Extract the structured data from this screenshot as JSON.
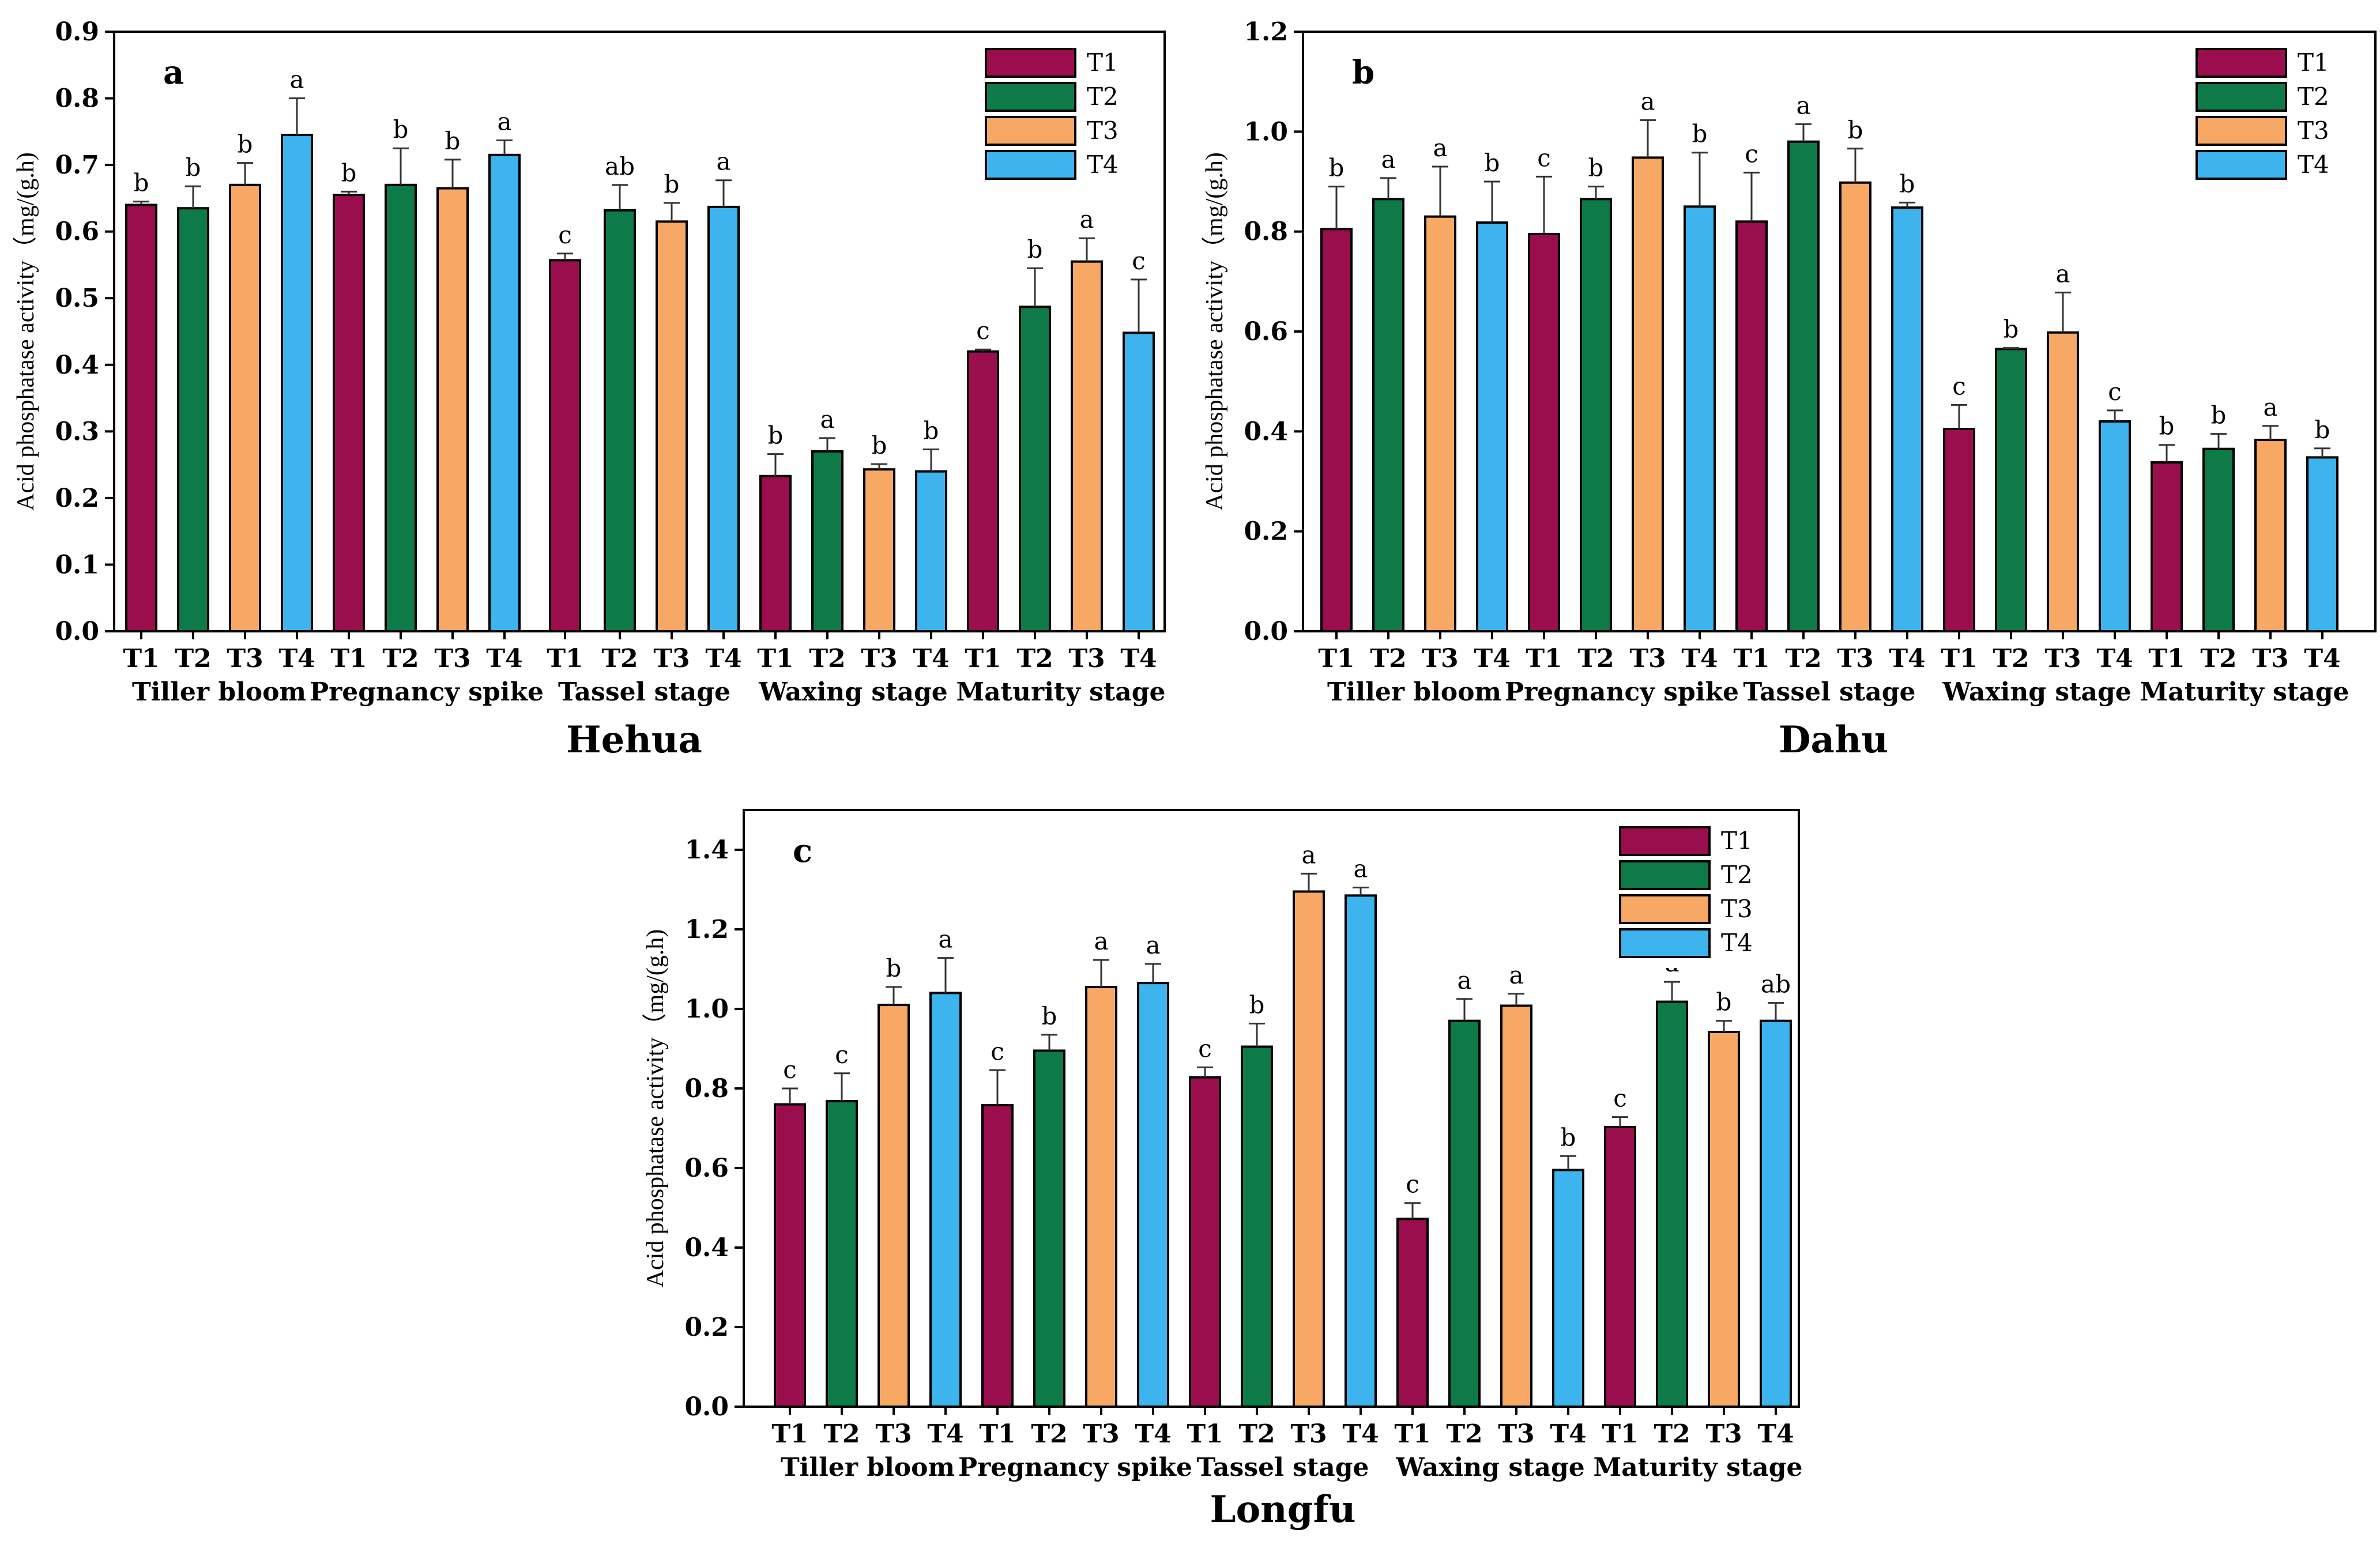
{
  "colors": {
    "T1": "#9B0E4E",
    "T2": "#0E7A48",
    "T3": "#F7A865",
    "T4": "#3DB4EE"
  },
  "chart_data": [
    {
      "type": "bar",
      "panel": "a",
      "title": "Hehua",
      "ylabel": "Acid phosphatase activity（mg/(g.h)",
      "ylim": [
        0,
        0.9
      ],
      "yticks": [
        0.0,
        0.1,
        0.2,
        0.3,
        0.4,
        0.5,
        0.6,
        0.7,
        0.8,
        0.9
      ],
      "ytick_labels": [
        "0.0",
        "0.1",
        "0.2",
        "0.3",
        "0.4",
        "0.5",
        "0.6",
        "0.7",
        "0.8",
        "0.9"
      ],
      "stages": [
        "Tiller bloom",
        "Pregnancy spike",
        "Tassel stage",
        "Waxing stage",
        "Maturity stage"
      ],
      "treatments": [
        "T1",
        "T2",
        "T3",
        "T4"
      ],
      "legend": [
        "T1",
        "T2",
        "T3",
        "T4"
      ],
      "values": [
        [
          0.64,
          0.635,
          0.67,
          0.745
        ],
        [
          0.655,
          0.67,
          0.665,
          0.715
        ],
        [
          0.557,
          0.632,
          0.615,
          0.637
        ],
        [
          0.233,
          0.27,
          0.243,
          0.24
        ],
        [
          0.42,
          0.487,
          0.555,
          0.448
        ]
      ],
      "errors": [
        [
          0.005,
          0.033,
          0.033,
          0.055
        ],
        [
          0.005,
          0.055,
          0.043,
          0.022
        ],
        [
          0.01,
          0.038,
          0.028,
          0.04
        ],
        [
          0.033,
          0.02,
          0.008,
          0.033
        ],
        [
          0.003,
          0.058,
          0.035,
          0.08
        ]
      ],
      "letters": [
        [
          "b",
          "b",
          "b",
          "a"
        ],
        [
          "b",
          "b",
          "b",
          "a"
        ],
        [
          "c",
          "ab",
          "b",
          "a"
        ],
        [
          "b",
          "a",
          "b",
          "b"
        ],
        [
          "c",
          "b",
          "a",
          "c"
        ]
      ]
    },
    {
      "type": "bar",
      "panel": "b",
      "title": "Dahu",
      "ylabel": "Acid phosphatase activity（mg/(g.h)",
      "ylim": [
        0,
        1.2
      ],
      "yticks": [
        0.0,
        0.2,
        0.4,
        0.6,
        0.8,
        1.0,
        1.2
      ],
      "ytick_labels": [
        "0.0",
        "0.2",
        "0.4",
        "0.6",
        "0.8",
        "1.0",
        "1.2"
      ],
      "stages": [
        "Tiller bloom",
        "Pregnancy spike",
        "Tassel stage",
        "Waxing stage",
        "Maturity stage"
      ],
      "treatments": [
        "T1",
        "T2",
        "T3",
        "T4"
      ],
      "legend": [
        "T1",
        "T2",
        "T3",
        "T4"
      ],
      "values": [
        [
          0.805,
          0.865,
          0.83,
          0.818
        ],
        [
          0.795,
          0.865,
          0.948,
          0.85
        ],
        [
          0.82,
          0.98,
          0.898,
          0.848
        ],
        [
          0.405,
          0.565,
          0.598,
          0.42
        ],
        [
          0.338,
          0.365,
          0.383,
          0.348
        ]
      ],
      "errors": [
        [
          0.085,
          0.042,
          0.1,
          0.082
        ],
        [
          0.115,
          0.025,
          0.075,
          0.108
        ],
        [
          0.098,
          0.035,
          0.068,
          0.01
        ],
        [
          0.048,
          0.002,
          0.08,
          0.022
        ],
        [
          0.035,
          0.03,
          0.028,
          0.018
        ]
      ],
      "letters": [
        [
          "b",
          "a",
          "a",
          "b"
        ],
        [
          "c",
          "b",
          "a",
          "b"
        ],
        [
          "c",
          "a",
          "b",
          "b"
        ],
        [
          "c",
          "b",
          "a",
          "c"
        ],
        [
          "b",
          "b",
          "a",
          "b"
        ]
      ]
    },
    {
      "type": "bar",
      "panel": "c",
      "title": "Longfu",
      "ylabel": "Acid phosphatase activity（mg/(g.h)",
      "ylim": [
        0,
        1.5
      ],
      "yticks": [
        0.0,
        0.2,
        0.4,
        0.6,
        0.8,
        1.0,
        1.2,
        1.4
      ],
      "ytick_labels": [
        "0.0",
        "0.2",
        "0.4",
        "0.6",
        "0.8",
        "1.0",
        "1.2",
        "1.4"
      ],
      "stages": [
        "Tiller bloom",
        "Pregnancy spike",
        "Tassel stage",
        "Waxing stage",
        "Maturity stage"
      ],
      "treatments": [
        "T1",
        "T2",
        "T3",
        "T4"
      ],
      "legend": [
        "T1",
        "T2",
        "T3",
        "T4"
      ],
      "values": [
        [
          0.76,
          0.768,
          1.01,
          1.04
        ],
        [
          0.758,
          0.895,
          1.055,
          1.065
        ],
        [
          0.828,
          0.905,
          1.295,
          1.285
        ],
        [
          0.472,
          0.97,
          1.008,
          0.595
        ],
        [
          0.703,
          1.018,
          0.942,
          0.97
        ]
      ],
      "errors": [
        [
          0.04,
          0.07,
          0.045,
          0.088
        ],
        [
          0.088,
          0.04,
          0.068,
          0.048
        ],
        [
          0.025,
          0.058,
          0.045,
          0.02
        ],
        [
          0.04,
          0.055,
          0.03,
          0.035
        ],
        [
          0.025,
          0.05,
          0.028,
          0.045
        ]
      ],
      "letters": [
        [
          "c",
          "c",
          "b",
          "a"
        ],
        [
          "c",
          "b",
          "a",
          "a"
        ],
        [
          "c",
          "b",
          "a",
          "a"
        ],
        [
          "c",
          "a",
          "a",
          "b"
        ],
        [
          "c",
          "a",
          "b",
          "ab"
        ]
      ]
    }
  ]
}
